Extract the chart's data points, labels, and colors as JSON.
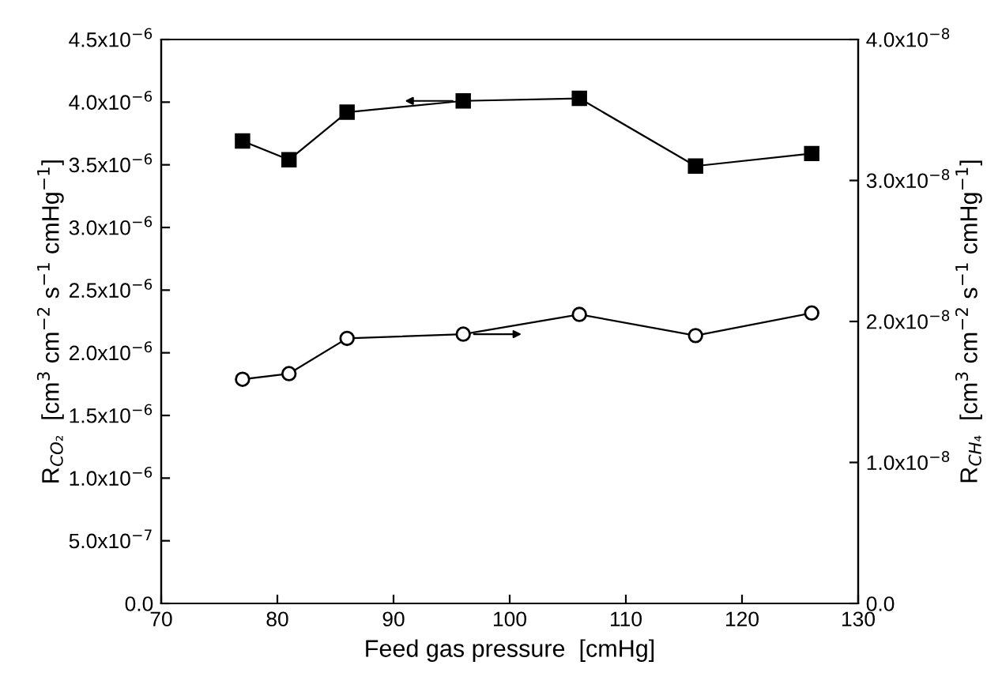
{
  "chart_data": {
    "type": "line",
    "xlabel": "Feed gas pressure  [cmHg]",
    "ylabel": "R$_{CO₂}$  [cm$^{3}$ cm$^{−2}$ s$^{−1}$ cmHg$^{−1}$]",
    "y2label": "R$_{CH₄}$  [cm$^{3}$ cm$^{−2}$ s$^{−1}$ cmHg$^{−1}$]",
    "x": [
      77,
      81,
      86,
      96,
      106,
      116,
      126
    ],
    "series": [
      {
        "color": "#000000",
        "marker": "square",
        "values": [
          3.69e-06,
          3.54e-06,
          3.92e-06,
          4.01e-06,
          4.03e-06,
          3.49e-06,
          3.59e-06
        ]
      },
      {
        "color": "#000000",
        "marker": "circle",
        "axis": "y2",
        "values": [
          1.59e-08,
          1.63e-08,
          1.88e-08,
          1.91e-08,
          2.05e-08,
          1.9e-08,
          2.06e-08
        ]
      }
    ],
    "xlim": [
      70,
      130
    ],
    "xticks": [
      70,
      80,
      90,
      100,
      110,
      120,
      130
    ],
    "ylim": [
      0,
      4.5e-06
    ],
    "yticks": [
      {
        "value": 0,
        "label": "0.0"
      },
      {
        "value": 5e-07,
        "label": "5.0x10$^{−7}$"
      },
      {
        "value": 1e-06,
        "label": "1.0x10$^{−6}$"
      },
      {
        "value": 1.5e-06,
        "label": "1.5x10$^{−6}$"
      },
      {
        "value": 2e-06,
        "label": "2.0x10$^{−6}$"
      },
      {
        "value": 2.5e-06,
        "label": "2.5x10$^{−6}$"
      },
      {
        "value": 3e-06,
        "label": "3.0x10$^{−6}$"
      },
      {
        "value": 3.5e-06,
        "label": "3.5x10$^{−6}$"
      },
      {
        "value": 4e-06,
        "label": "4.0x10$^{−6}$"
      },
      {
        "value": 4.5e-06,
        "label": "4.5x10$^{−6}$"
      }
    ],
    "y2lim": [
      0,
      4e-08
    ],
    "y2ticks": [
      {
        "value": 0,
        "label": "0.0"
      },
      {
        "value": 1e-08,
        "label": "1.0x10$^{−8}$"
      },
      {
        "value": 2e-08,
        "label": "2.0x10$^{−8}$"
      },
      {
        "value": 3e-08,
        "label": "3.0x10$^{−8}$"
      },
      {
        "value": 4e-08,
        "label": "4.0x10$^{−8}$"
      }
    ],
    "grid": false,
    "line_style": "solid"
  }
}
